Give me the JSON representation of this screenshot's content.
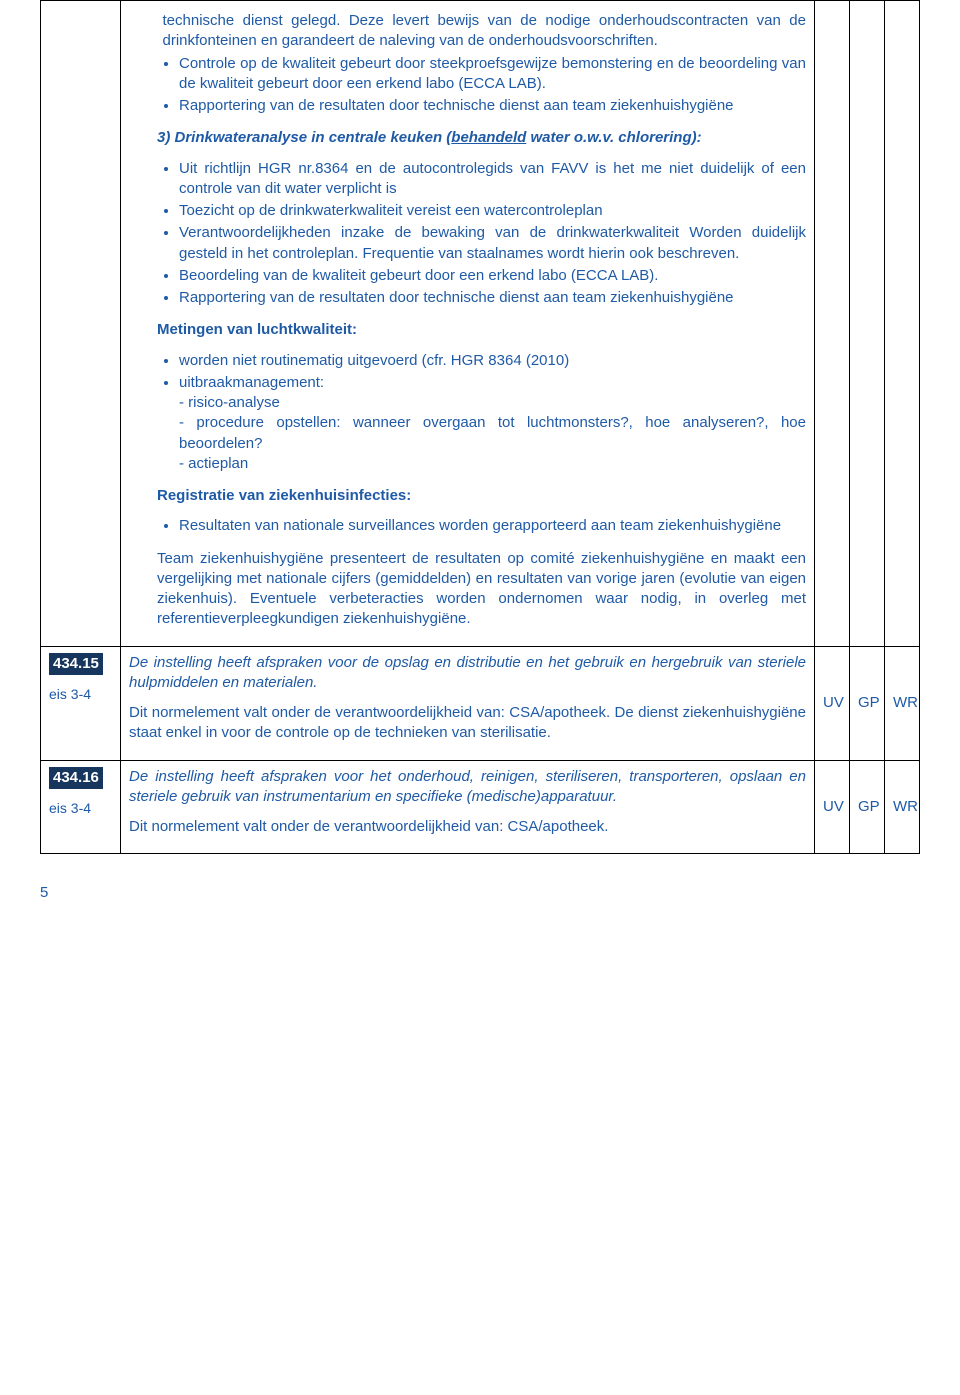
{
  "row0": {
    "bullets_a": [
      "technische dienst gelegd. Deze  levert bewijs van de nodige onderhoudscontracten van de drinkfonteinen en garandeert de naleving van de onderhoudsvoorschriften.",
      "Controle op de kwaliteit gebeurt door steekproefsgewijze bemonstering en de beoordeling van de kwaliteit gebeurt door een erkend labo (ECCA LAB).",
      "Rapportering van de resultaten door technische dienst aan team ziekenhuishygiëne"
    ],
    "heading_3_prefix": "3) Drinkwateranalyse in centrale keuken (",
    "heading_3_u": "behandeld",
    "heading_3_mid": " water o.w.v. chlorering):",
    "bullets_b": [
      "Uit richtlijn HGR nr.8364 en de autocontrolegids van FAVV is het me niet duidelijk of een controle van dit water verplicht is",
      "Toezicht op de drinkwaterkwaliteit vereist een watercontroleplan",
      "Verantwoordelijkheden inzake de bewaking van de drinkwaterkwaliteit Worden duidelijk gesteld in het controleplan. Frequentie van staalnames wordt hierin ook beschreven.",
      "Beoordeling van de kwaliteit gebeurt door een erkend labo (ECCA LAB).",
      "Rapportering van de resultaten door technische dienst aan team ziekenhuishygiëne"
    ],
    "heading_metingen": "Metingen van luchtkwaliteit:",
    "bullets_c_item1": "worden niet routinematig uitgevoerd (cfr. HGR 8364 (2010)",
    "bullets_c_item2_head": "uitbraakmanagement:",
    "bullets_c_item2_lines": [
      "- risico-analyse",
      "- procedure opstellen: wanneer overgaan tot luchtmonsters?, hoe analyseren?, hoe beoordelen?",
      "- actieplan"
    ],
    "heading_registratie": "Registratie van ziekenhuisinfecties:",
    "bullets_d": [
      "Resultaten van nationale surveillances worden gerapporteerd aan team ziekenhuishygiëne"
    ],
    "closing_para": "Team ziekenhuishygiëne presenteert de resultaten op comité ziekenhuishygiëne en maakt een vergelijking met nationale cijfers (gemiddelden) en resultaten van vorige jaren (evolutie van eigen ziekenhuis). Eventuele verbeteracties worden ondernomen waar nodig, in overleg met referentieverpleegkundigen ziekenhuishygiëne."
  },
  "row1": {
    "badge": "434.15",
    "eis": "eis 3-4",
    "italic_para": "De instelling heeft afspraken voor de opslag en distributie en het gebruik en hergebruik van steriele hulpmiddelen en materialen.",
    "plain_para": "Dit normelement valt onder de verantwoordelijkheid van: CSA/apotheek. De dienst ziekenhuishygiëne staat enkel in voor de controle op de technieken van sterilisatie.",
    "uv": "UV",
    "gp": "GP",
    "wr": "WR"
  },
  "row2": {
    "badge": "434.16",
    "eis": "eis 3-4",
    "italic_para": "De instelling heeft afspraken voor het onderhoud, reinigen, steriliseren, transporteren, opslaan en steriele gebruik van instrumentarium en specifieke (medische)apparatuur.",
    "plain_para": "Dit normelement valt onder de verantwoordelijkheid van: CSA/apotheek.",
    "uv": "UV",
    "gp": "GP",
    "wr": "WR"
  },
  "page_number": "5"
}
